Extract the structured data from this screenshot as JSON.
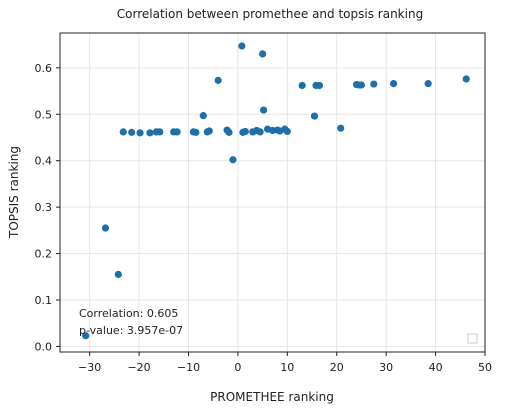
{
  "chart_data": {
    "type": "scatter",
    "title": "Correlation between promethee and topsis ranking",
    "xlabel": "PROMETHEE ranking",
    "ylabel": "TOPSIS ranking",
    "xlim": [
      -36,
      50
    ],
    "ylim": [
      -0.012,
      0.675
    ],
    "xticks": [
      -30,
      -20,
      -10,
      0,
      10,
      20,
      30,
      40,
      50
    ],
    "yticks": [
      0.0,
      0.1,
      0.2,
      0.3,
      0.4,
      0.5,
      0.6
    ],
    "xtick_labels": [
      "−30",
      "−20",
      "−10",
      "0",
      "10",
      "20",
      "30",
      "40",
      "50"
    ],
    "ytick_labels": [
      "0.0",
      "0.1",
      "0.2",
      "0.3",
      "0.4",
      "0.5",
      "0.6"
    ],
    "grid": true,
    "point_color": "#1f6fa8",
    "annotation": [
      "Correlation: 0.605",
      "p-value: 3.957e-07"
    ],
    "points": [
      [
        -30.8,
        0.023
      ],
      [
        -26.8,
        0.255
      ],
      [
        -24.2,
        0.155
      ],
      [
        -23.2,
        0.462
      ],
      [
        -21.5,
        0.461
      ],
      [
        -19.8,
        0.46
      ],
      [
        -17.8,
        0.46
      ],
      [
        -16.5,
        0.462
      ],
      [
        -15.8,
        0.462
      ],
      [
        -13.0,
        0.462
      ],
      [
        -12.3,
        0.462
      ],
      [
        -9.0,
        0.462
      ],
      [
        -8.5,
        0.461
      ],
      [
        -7.0,
        0.497
      ],
      [
        -6.2,
        0.462
      ],
      [
        -5.8,
        0.464
      ],
      [
        -4.0,
        0.573
      ],
      [
        -2.2,
        0.466
      ],
      [
        -1.8,
        0.461
      ],
      [
        -1.0,
        0.402
      ],
      [
        0.8,
        0.647
      ],
      [
        1.0,
        0.461
      ],
      [
        1.5,
        0.463
      ],
      [
        3.0,
        0.462
      ],
      [
        3.8,
        0.465
      ],
      [
        4.5,
        0.462
      ],
      [
        5.0,
        0.63
      ],
      [
        5.2,
        0.509
      ],
      [
        6.0,
        0.468
      ],
      [
        7.0,
        0.465
      ],
      [
        8.0,
        0.466
      ],
      [
        8.5,
        0.464
      ],
      [
        9.5,
        0.468
      ],
      [
        10.0,
        0.463
      ],
      [
        13.0,
        0.562
      ],
      [
        15.5,
        0.496
      ],
      [
        15.8,
        0.562
      ],
      [
        16.5,
        0.562
      ],
      [
        20.8,
        0.47
      ],
      [
        24.0,
        0.564
      ],
      [
        24.5,
        0.563
      ],
      [
        25.0,
        0.563
      ],
      [
        27.5,
        0.565
      ],
      [
        31.5,
        0.566
      ],
      [
        38.5,
        0.566
      ],
      [
        46.2,
        0.576
      ]
    ]
  }
}
